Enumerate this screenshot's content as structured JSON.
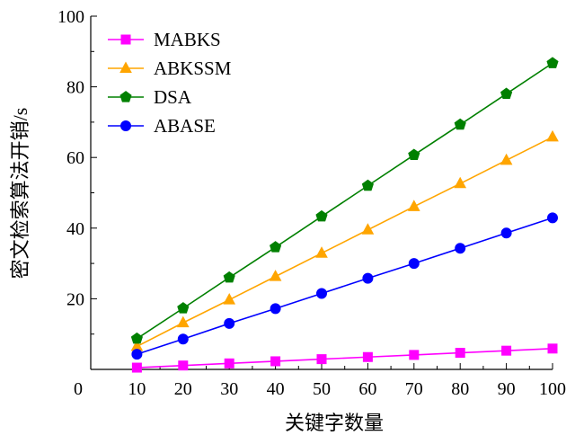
{
  "chart_data": {
    "type": "line",
    "title": "",
    "xlabel": "关键字数量",
    "ylabel": "密文检索算法开销/s",
    "x": [
      10,
      20,
      30,
      40,
      50,
      60,
      70,
      80,
      90,
      100
    ],
    "xlim": [
      0,
      100
    ],
    "ylim": [
      0,
      100
    ],
    "xticks": [
      "0",
      "10",
      "20",
      "30",
      "40",
      "50",
      "60",
      "70",
      "80",
      "90",
      "100"
    ],
    "yticks": [
      "20",
      "40",
      "60",
      "80",
      "100"
    ],
    "grid": false,
    "legend_position": "top-left",
    "series": [
      {
        "name": "MABKS",
        "color": "#ff00ff",
        "marker": "square",
        "values": [
          0.5,
          1.1,
          1.7,
          2.3,
          2.9,
          3.5,
          4.1,
          4.7,
          5.3,
          5.9
        ]
      },
      {
        "name": "ABKSSM",
        "color": "#ffa500",
        "marker": "triangle",
        "values": [
          6.5,
          13.2,
          19.7,
          26.3,
          32.9,
          39.5,
          46.1,
          52.6,
          59.2,
          65.8
        ]
      },
      {
        "name": "DSA",
        "color": "#008000",
        "marker": "pentagon",
        "values": [
          8.7,
          17.3,
          26.0,
          34.6,
          43.3,
          52.0,
          60.7,
          69.3,
          78.0,
          86.7
        ]
      },
      {
        "name": "ABASE",
        "color": "#0000ff",
        "marker": "circle",
        "values": [
          4.3,
          8.6,
          13.0,
          17.2,
          21.5,
          25.8,
          30.0,
          34.3,
          38.6,
          42.9
        ]
      }
    ]
  }
}
